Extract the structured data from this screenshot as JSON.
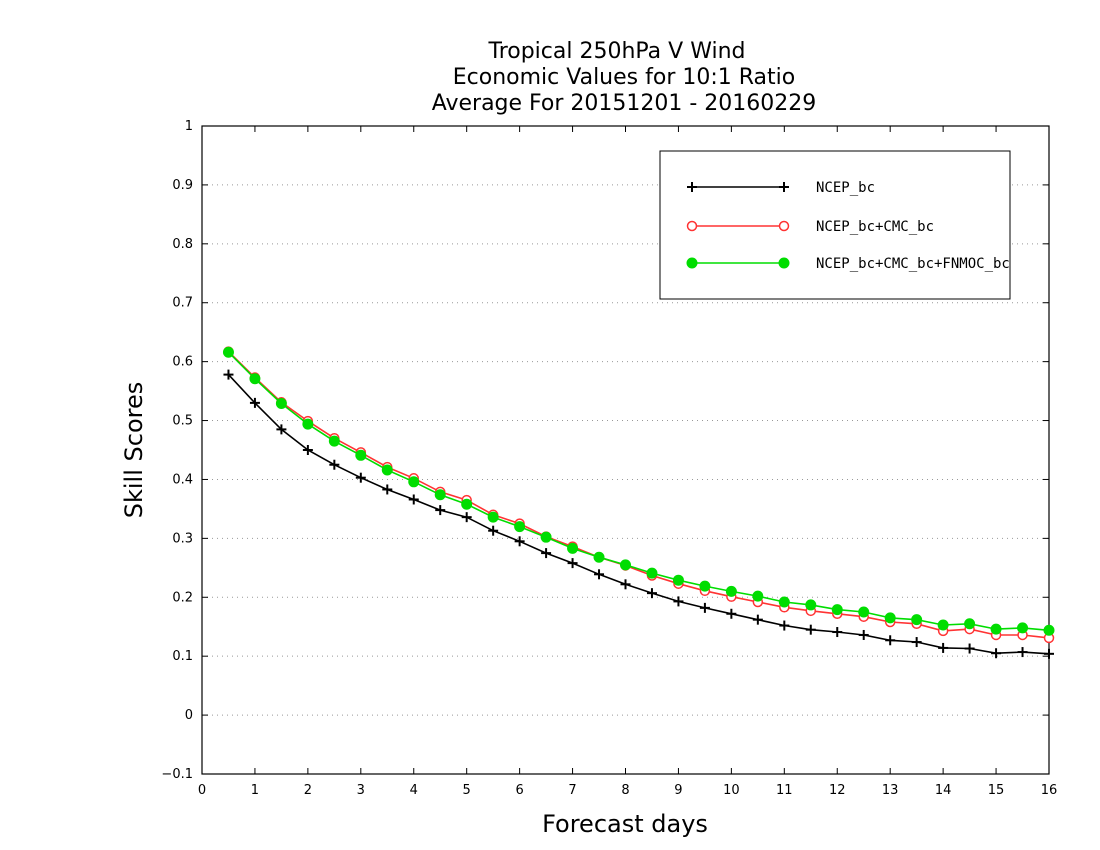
{
  "chart_data": {
    "type": "line",
    "title": [
      "Tropical 250hPa V Wind",
      "Economic Values for 10:1 Ratio",
      "Average For 20151201 - 20160229"
    ],
    "xlabel": "Forecast days",
    "ylabel": "Skill Scores",
    "xlim": [
      0,
      16
    ],
    "ylim": [
      -0.1,
      1
    ],
    "xticks": [
      0,
      1,
      2,
      3,
      4,
      5,
      6,
      7,
      8,
      9,
      10,
      11,
      12,
      13,
      14,
      15,
      16
    ],
    "yticks": [
      -0.1,
      0,
      0.1,
      0.2,
      0.3,
      0.4,
      0.5,
      0.6,
      0.7,
      0.8,
      0.9,
      1
    ],
    "ytick_labels": [
      "−0.1",
      "0",
      "0.1",
      "0.2",
      "0.3",
      "0.4",
      "0.5",
      "0.6",
      "0.7",
      "0.8",
      "0.9",
      "1"
    ],
    "grid": "horizontal-dotted",
    "legend_position": "top-right",
    "x": [
      0.5,
      1,
      1.5,
      2,
      2.5,
      3,
      3.5,
      4,
      4.5,
      5,
      5.5,
      6,
      6.5,
      7,
      7.5,
      8,
      8.5,
      9,
      9.5,
      10,
      10.5,
      11,
      11.5,
      12,
      12.5,
      13,
      13.5,
      14,
      14.5,
      15,
      15.5,
      16
    ],
    "series": [
      {
        "name": "NCEP_bc",
        "color": "#000000",
        "marker": "plus",
        "values": [
          0.578,
          0.53,
          0.485,
          0.45,
          0.425,
          0.403,
          0.383,
          0.366,
          0.348,
          0.336,
          0.313,
          0.295,
          0.275,
          0.258,
          0.239,
          0.222,
          0.207,
          0.193,
          0.182,
          0.172,
          0.162,
          0.152,
          0.145,
          0.141,
          0.136,
          0.127,
          0.124,
          0.114,
          0.113,
          0.105,
          0.107,
          0.104
        ]
      },
      {
        "name": "NCEP_bc+CMC_bc",
        "color": "#ff3333",
        "marker": "open-circle",
        "values": [
          0.617,
          0.573,
          0.531,
          0.499,
          0.47,
          0.446,
          0.421,
          0.402,
          0.379,
          0.365,
          0.34,
          0.325,
          0.303,
          0.286,
          0.268,
          0.254,
          0.237,
          0.223,
          0.211,
          0.201,
          0.192,
          0.183,
          0.177,
          0.172,
          0.167,
          0.158,
          0.155,
          0.143,
          0.146,
          0.136,
          0.136,
          0.131
        ]
      },
      {
        "name": "NCEP_bc+CMC_bc+FNMOC_bc",
        "color": "#00dd00",
        "marker": "filled-circle",
        "values": [
          0.616,
          0.571,
          0.529,
          0.494,
          0.465,
          0.441,
          0.416,
          0.396,
          0.374,
          0.358,
          0.336,
          0.32,
          0.302,
          0.283,
          0.268,
          0.255,
          0.241,
          0.229,
          0.219,
          0.21,
          0.202,
          0.192,
          0.187,
          0.179,
          0.175,
          0.165,
          0.162,
          0.153,
          0.155,
          0.146,
          0.148,
          0.144
        ]
      }
    ]
  }
}
